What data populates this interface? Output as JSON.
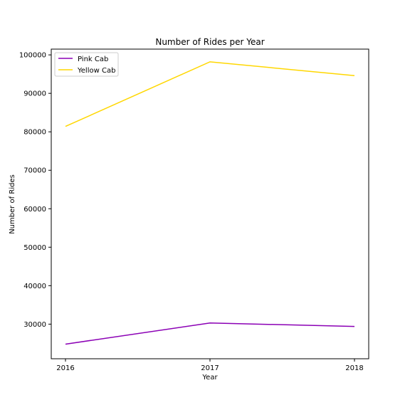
{
  "chart_data": {
    "type": "line",
    "title": "Number of Rides per Year",
    "xlabel": "Year",
    "ylabel": "Number of Rides",
    "x": [
      "2016",
      "2017",
      "2018"
    ],
    "series": [
      {
        "name": "Pink Cab",
        "color": "#8b00b5",
        "values": [
          24800,
          30300,
          29400
        ]
      },
      {
        "name": "Yellow Cab",
        "color": "#ffd700",
        "values": [
          81400,
          98200,
          94600
        ]
      }
    ],
    "ylim": [
      21000,
      101500
    ],
    "yticks": [
      30000,
      40000,
      50000,
      60000,
      70000,
      80000,
      90000,
      100000
    ],
    "ytick_labels": [
      "30000",
      "40000",
      "50000",
      "60000",
      "70000",
      "80000",
      "90000",
      "100000"
    ],
    "grid": false,
    "legend_position": "top-left"
  }
}
